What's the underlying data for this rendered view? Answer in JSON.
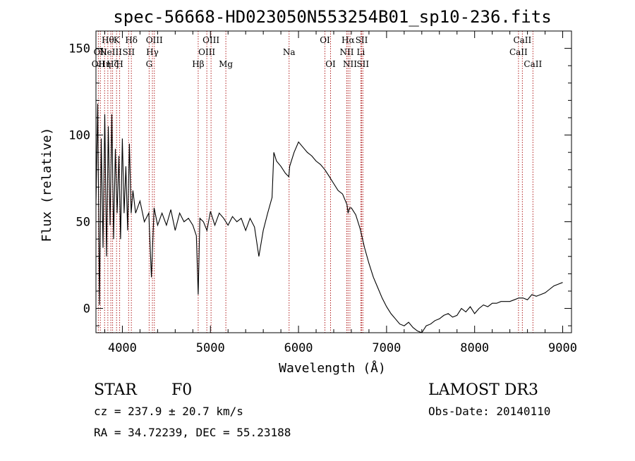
{
  "title": "spec-56668-HD023050N553254B01_sp10-236.fits",
  "info": {
    "class": "STAR",
    "subclass": "F0",
    "survey": "LAMOST DR3",
    "cz": "cz = 237.9 ± 20.7 km/s",
    "obs_date": "Obs-Date: 20140110",
    "coords": "RA =  34.72239, DEC =  55.23188"
  },
  "chart_data": {
    "type": "line",
    "title": "spec-56668-HD023050N553254B01_sp10-236.fits",
    "xlabel": "Wavelength (Å)",
    "ylabel": "Flux (relative)",
    "xlim": [
      3700,
      9100
    ],
    "ylim": [
      -14,
      160
    ],
    "x_ticks": [
      4000,
      5000,
      6000,
      7000,
      8000,
      9000
    ],
    "y_ticks": [
      0,
      50,
      100,
      150
    ],
    "grid": false,
    "series": [
      {
        "color": "#000000",
        "x": [
          3700,
          3720,
          3740,
          3760,
          3780,
          3800,
          3820,
          3840,
          3860,
          3880,
          3900,
          3920,
          3940,
          3960,
          3980,
          4000,
          4020,
          4040,
          4060,
          4080,
          4100,
          4120,
          4150,
          4200,
          4250,
          4300,
          4330,
          4360,
          4400,
          4450,
          4500,
          4550,
          4600,
          4650,
          4700,
          4750,
          4800,
          4840,
          4861,
          4880,
          4920,
          4960,
          5000,
          5050,
          5100,
          5150,
          5200,
          5250,
          5300,
          5350,
          5400,
          5450,
          5500,
          5550,
          5600,
          5650,
          5700,
          5720,
          5750,
          5800,
          5850,
          5890,
          5900,
          5950,
          6000,
          6050,
          6100,
          6150,
          6200,
          6250,
          6300,
          6350,
          6400,
          6450,
          6500,
          6550,
          6563,
          6580,
          6600,
          6650,
          6700,
          6750,
          6800,
          6850,
          6900,
          6950,
          7000,
          7050,
          7100,
          7150,
          7200,
          7250,
          7300,
          7350,
          7400,
          7450,
          7500,
          7550,
          7600,
          7650,
          7700,
          7750,
          7800,
          7850,
          7900,
          7950,
          8000,
          8050,
          8100,
          8150,
          8200,
          8250,
          8300,
          8350,
          8400,
          8450,
          8500,
          8550,
          8600,
          8650,
          8700,
          8750,
          8800,
          8850,
          8900,
          8950,
          9000
        ],
        "y": [
          60,
          118,
          2,
          98,
          35,
          112,
          30,
          105,
          48,
          112,
          40,
          92,
          55,
          88,
          40,
          98,
          55,
          82,
          45,
          95,
          55,
          68,
          55,
          62,
          50,
          55,
          18,
          58,
          48,
          55,
          48,
          57,
          45,
          55,
          50,
          52,
          48,
          42,
          8,
          52,
          50,
          45,
          56,
          48,
          55,
          52,
          48,
          53,
          50,
          52,
          45,
          52,
          47,
          30,
          45,
          55,
          64,
          90,
          85,
          82,
          78,
          76,
          82,
          90,
          96,
          93,
          90,
          88,
          85,
          83,
          80,
          76,
          72,
          68,
          66,
          60,
          55,
          58,
          58,
          54,
          46,
          35,
          26,
          18,
          12,
          6,
          1,
          -3,
          -6,
          -9,
          -10,
          -8,
          -11,
          -13,
          -14,
          -10,
          -9,
          -7,
          -6,
          -4,
          -3,
          -5,
          -4,
          0,
          -2,
          1,
          -3,
          0,
          2,
          1,
          3,
          3,
          4,
          4,
          4,
          5,
          6,
          6,
          5,
          8,
          7,
          8,
          9,
          11,
          13,
          14,
          15
        ]
      }
    ],
    "lines": [
      {
        "wl": 3727,
        "label": "OII",
        "row": 3
      },
      {
        "wl": 3750,
        "label": "OII",
        "row": 2
      },
      {
        "wl": 3798,
        "label": "Hη",
        "row": 3
      },
      {
        "wl": 3835,
        "label": "Hθ",
        "row": 1
      },
      {
        "wl": 3869,
        "label": "NeIII",
        "row": 2
      },
      {
        "wl": 3889,
        "label": "Hζ",
        "row": 3
      },
      {
        "wl": 3934,
        "label": "K",
        "row": 1
      },
      {
        "wl": 3969,
        "label": "H",
        "row": 3
      },
      {
        "wl": 4071,
        "label": "SII",
        "row": 2
      },
      {
        "wl": 4102,
        "label": "Hδ",
        "row": 1
      },
      {
        "wl": 4304,
        "label": "G",
        "row": 3
      },
      {
        "wl": 4341,
        "label": "Hγ",
        "row": 2
      },
      {
        "wl": 4363,
        "label": "OIII",
        "row": 1
      },
      {
        "wl": 4861,
        "label": "Hβ",
        "row": 3
      },
      {
        "wl": 4959,
        "label": "OIII",
        "row": 2
      },
      {
        "wl": 5007,
        "label": "OIII",
        "row": 1
      },
      {
        "wl": 5175,
        "label": "Mg",
        "row": 3
      },
      {
        "wl": 5893,
        "label": "Na",
        "row": 2
      },
      {
        "wl": 6300,
        "label": "OI",
        "row": 1
      },
      {
        "wl": 6364,
        "label": "OI",
        "row": 3
      },
      {
        "wl": 6548,
        "label": "NII",
        "row": 2
      },
      {
        "wl": 6563,
        "label": "Hα",
        "row": 1
      },
      {
        "wl": 6584,
        "label": "NII",
        "row": 3
      },
      {
        "wl": 6708,
        "label": "Li",
        "row": 2
      },
      {
        "wl": 6717,
        "label": "SII",
        "row": 1
      },
      {
        "wl": 6731,
        "label": "SII",
        "row": 3
      },
      {
        "wl": 8498,
        "label": "CaII",
        "row": 2
      },
      {
        "wl": 8542,
        "label": "CaII",
        "row": 1
      },
      {
        "wl": 8662,
        "label": "CaII",
        "row": 3
      }
    ]
  }
}
